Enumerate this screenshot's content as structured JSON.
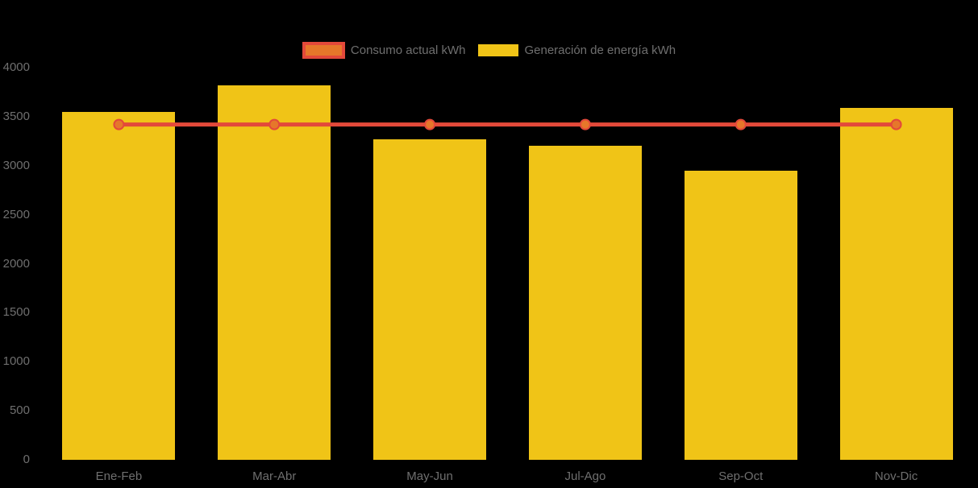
{
  "chart_data": {
    "type": "bar",
    "title": "",
    "categories": [
      "Ene-Feb",
      "Mar-Abr",
      "May-Jun",
      "Jul-Ago",
      "Sep-Oct",
      "Nov-Dic"
    ],
    "series": [
      {
        "name": "Consumo actual kWh",
        "type": "line",
        "values": [
          3420,
          3420,
          3420,
          3420,
          3420,
          3420
        ],
        "color": "#E3493A",
        "point_color": "#E6772A"
      },
      {
        "name": "Generación de energía kWh",
        "type": "bar",
        "values": [
          3550,
          3820,
          3270,
          3200,
          2950,
          3590
        ],
        "color": "#F0C417"
      }
    ],
    "xlabel": "",
    "ylabel": "",
    "ylim": [
      0,
      4000
    ],
    "yticks": [
      0,
      500,
      1000,
      1500,
      2000,
      2500,
      3000,
      3500,
      4000
    ],
    "grid": false,
    "legend_position": "top",
    "background_color": "#000000",
    "text_color": "#6F6F6F"
  }
}
